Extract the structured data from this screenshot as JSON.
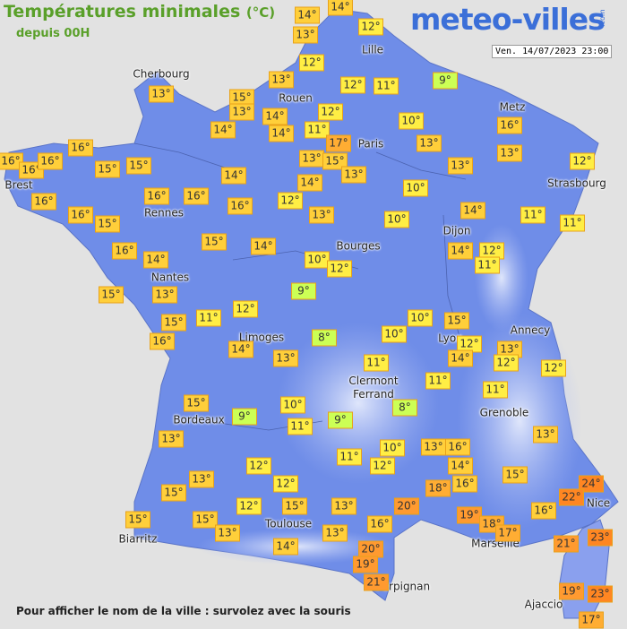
{
  "header": {
    "title": "Températures minimales",
    "unit": "(°C)",
    "subtitle": "depuis 00H",
    "logo": "meteo-villes",
    "logo_suffix": ".com",
    "timestamp": "Ven. 14/07/2023 23:00"
  },
  "cities": [
    "Cherbourg",
    "Lille",
    "Rouen",
    "Metz",
    "Paris",
    "Brest",
    "Strasbourg",
    "Rennes",
    "Dijon",
    "Bourges",
    "Nantes",
    "Limoges",
    "Annecy",
    "Lyon",
    "Clermont Ferrand",
    "Grenoble",
    "Bordeaux",
    "Nice",
    "Toulouse",
    "Biarritz",
    "Marseille",
    "Perpignan",
    "Ajaccio"
  ],
  "readings": [
    {
      "value": 14,
      "label": "14°"
    },
    {
      "value": 14,
      "label": "14°"
    },
    {
      "value": 12,
      "label": "12°"
    },
    {
      "value": 13,
      "label": "13°"
    },
    {
      "value": 12,
      "label": "12°"
    },
    {
      "value": 9,
      "label": "9°"
    },
    {
      "value": 12,
      "label": "12°"
    },
    {
      "value": 11,
      "label": "11°"
    },
    {
      "value": 13,
      "label": "13°"
    },
    {
      "value": 13,
      "label": "13°"
    },
    {
      "value": 15,
      "label": "15°"
    },
    {
      "value": 13,
      "label": "13°"
    },
    {
      "value": 14,
      "label": "14°"
    },
    {
      "value": 12,
      "label": "12°"
    },
    {
      "value": 14,
      "label": "14°"
    },
    {
      "value": 11,
      "label": "11°"
    },
    {
      "value": 14,
      "label": "14°"
    },
    {
      "value": 10,
      "label": "10°"
    },
    {
      "value": 16,
      "label": "16°"
    },
    {
      "value": 17,
      "label": "17°"
    },
    {
      "value": 13,
      "label": "13°"
    },
    {
      "value": 13,
      "label": "13°"
    },
    {
      "value": 16,
      "label": "16°"
    },
    {
      "value": 16,
      "label": "16°"
    },
    {
      "value": 16,
      "label": "16°"
    },
    {
      "value": 16,
      "label": "16°"
    },
    {
      "value": 15,
      "label": "15°"
    },
    {
      "value": 15,
      "label": "15°"
    },
    {
      "value": 13,
      "label": "13°"
    },
    {
      "value": 15,
      "label": "15°"
    },
    {
      "value": 13,
      "label": "13°"
    },
    {
      "value": 13,
      "label": "13°"
    },
    {
      "value": 12,
      "label": "12°"
    },
    {
      "value": 14,
      "label": "14°"
    },
    {
      "value": 14,
      "label": "14°"
    },
    {
      "value": 10,
      "label": "10°"
    },
    {
      "value": 16,
      "label": "16°"
    },
    {
      "value": 16,
      "label": "16°"
    },
    {
      "value": 16,
      "label": "16°"
    },
    {
      "value": 16,
      "label": "16°"
    },
    {
      "value": 12,
      "label": "12°"
    },
    {
      "value": 13,
      "label": "13°"
    },
    {
      "value": 14,
      "label": "14°"
    },
    {
      "value": 11,
      "label": "11°"
    },
    {
      "value": 16,
      "label": "16°"
    },
    {
      "value": 15,
      "label": "15°"
    },
    {
      "value": 10,
      "label": "10°"
    },
    {
      "value": 11,
      "label": "11°"
    },
    {
      "value": 16,
      "label": "16°"
    },
    {
      "value": 14,
      "label": "14°"
    },
    {
      "value": 15,
      "label": "15°"
    },
    {
      "value": 14,
      "label": "14°"
    },
    {
      "value": 10,
      "label": "10°"
    },
    {
      "value": 12,
      "label": "12°"
    },
    {
      "value": 14,
      "label": "14°"
    },
    {
      "value": 12,
      "label": "12°"
    },
    {
      "value": 11,
      "label": "11°"
    },
    {
      "value": 15,
      "label": "15°"
    },
    {
      "value": 13,
      "label": "13°"
    },
    {
      "value": 9,
      "label": "9°"
    },
    {
      "value": 12,
      "label": "12°"
    },
    {
      "value": 11,
      "label": "11°"
    },
    {
      "value": 15,
      "label": "15°"
    },
    {
      "value": 16,
      "label": "16°"
    },
    {
      "value": 10,
      "label": "10°"
    },
    {
      "value": 15,
      "label": "15°"
    },
    {
      "value": 8,
      "label": "8°"
    },
    {
      "value": 10,
      "label": "10°"
    },
    {
      "value": 12,
      "label": "12°"
    },
    {
      "value": 13,
      "label": "13°"
    },
    {
      "value": 14,
      "label": "14°"
    },
    {
      "value": 13,
      "label": "13°"
    },
    {
      "value": 12,
      "label": "12°"
    },
    {
      "value": 14,
      "label": "14°"
    },
    {
      "value": 12,
      "label": "12°"
    },
    {
      "value": 11,
      "label": "11°"
    },
    {
      "value": 11,
      "label": "11°"
    },
    {
      "value": 11,
      "label": "11°"
    },
    {
      "value": 15,
      "label": "15°"
    },
    {
      "value": 10,
      "label": "10°"
    },
    {
      "value": 8,
      "label": "8°"
    },
    {
      "value": 9,
      "label": "9°"
    },
    {
      "value": 9,
      "label": "9°"
    },
    {
      "value": 11,
      "label": "11°"
    },
    {
      "value": 13,
      "label": "13°"
    },
    {
      "value": 13,
      "label": "13°"
    },
    {
      "value": 10,
      "label": "10°"
    },
    {
      "value": 13,
      "label": "13°"
    },
    {
      "value": 16,
      "label": "16°"
    },
    {
      "value": 11,
      "label": "11°"
    },
    {
      "value": 12,
      "label": "12°"
    },
    {
      "value": 14,
      "label": "14°"
    },
    {
      "value": 15,
      "label": "15°"
    },
    {
      "value": 12,
      "label": "12°"
    },
    {
      "value": 13,
      "label": "13°"
    },
    {
      "value": 12,
      "label": "12°"
    },
    {
      "value": 18,
      "label": "18°"
    },
    {
      "value": 16,
      "label": "16°"
    },
    {
      "value": 15,
      "label": "15°"
    },
    {
      "value": 24,
      "label": "24°"
    },
    {
      "value": 22,
      "label": "22°"
    },
    {
      "value": 12,
      "label": "12°"
    },
    {
      "value": 15,
      "label": "15°"
    },
    {
      "value": 13,
      "label": "13°"
    },
    {
      "value": 20,
      "label": "20°"
    },
    {
      "value": 19,
      "label": "19°"
    },
    {
      "value": 16,
      "label": "16°"
    },
    {
      "value": 15,
      "label": "15°"
    },
    {
      "value": 15,
      "label": "15°"
    },
    {
      "value": 16,
      "label": "16°"
    },
    {
      "value": 18,
      "label": "18°"
    },
    {
      "value": 13,
      "label": "13°"
    },
    {
      "value": 13,
      "label": "13°"
    },
    {
      "value": 17,
      "label": "17°"
    },
    {
      "value": 21,
      "label": "21°"
    },
    {
      "value": 23,
      "label": "23°"
    },
    {
      "value": 14,
      "label": "14°"
    },
    {
      "value": 20,
      "label": "20°"
    },
    {
      "value": 19,
      "label": "19°"
    },
    {
      "value": 21,
      "label": "21°"
    },
    {
      "value": 19,
      "label": "19°"
    },
    {
      "value": 23,
      "label": "23°"
    },
    {
      "value": 17,
      "label": "17°"
    }
  ],
  "footer": "Pour afficher le nom de la ville : survolez avec la souris"
}
